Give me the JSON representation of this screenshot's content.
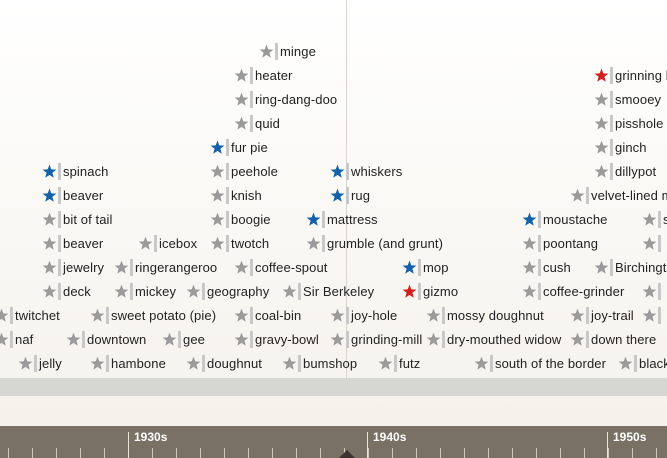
{
  "colors": {
    "grey_star": "#9a9a9a",
    "blue_star": "#1560a8",
    "red_star": "#d01f1f",
    "axis_bg": "#7a7165"
  },
  "terms": [
    {
      "label": "minge",
      "star": "grey"
    },
    {
      "label": "heater",
      "star": "grey"
    },
    {
      "label": "ring-dang-doo",
      "star": "grey"
    },
    {
      "label": "quid",
      "star": "grey"
    },
    {
      "label": "fur pie",
      "star": "blue"
    },
    {
      "label": "peehole",
      "star": "grey"
    },
    {
      "label": "knish",
      "star": "grey"
    },
    {
      "label": "boogie",
      "star": "grey"
    },
    {
      "label": "twotch",
      "star": "grey"
    },
    {
      "label": "coffee-spout",
      "star": "grey"
    },
    {
      "label": "geography",
      "star": "grey"
    },
    {
      "label": "coal-bin",
      "star": "grey"
    },
    {
      "label": "gravy-bowl",
      "star": "grey"
    },
    {
      "label": "doughnut",
      "star": "grey"
    },
    {
      "label": "spinach",
      "star": "blue"
    },
    {
      "label": "beaver",
      "star": "blue"
    },
    {
      "label": "bit of tail",
      "star": "grey"
    },
    {
      "label": "beaver",
      "star": "grey"
    },
    {
      "label": "jewelry",
      "star": "grey"
    },
    {
      "label": "deck",
      "star": "grey"
    },
    {
      "label": "icebox",
      "star": "grey"
    },
    {
      "label": "ringerangeroo",
      "star": "grey"
    },
    {
      "label": "mickey",
      "star": "grey"
    },
    {
      "label": "twitchet",
      "star": "grey"
    },
    {
      "label": "naf",
      "star": "grey"
    },
    {
      "label": "jelly",
      "star": "grey"
    },
    {
      "label": "sweet potato (pie)",
      "star": "grey"
    },
    {
      "label": "downtown",
      "star": "grey"
    },
    {
      "label": "hambone",
      "star": "grey"
    },
    {
      "label": "gee",
      "star": "grey"
    },
    {
      "label": "whiskers",
      "star": "blue"
    },
    {
      "label": "rug",
      "star": "blue"
    },
    {
      "label": "mattress",
      "star": "blue"
    },
    {
      "label": "grumble (and grunt)",
      "star": "grey"
    },
    {
      "label": "Sir Berkeley",
      "star": "grey"
    },
    {
      "label": "joy-hole",
      "star": "grey"
    },
    {
      "label": "bumshop",
      "star": "grey"
    },
    {
      "label": "grinding-mill",
      "star": "grey"
    },
    {
      "label": "futz",
      "star": "grey"
    },
    {
      "label": "mop",
      "star": "blue"
    },
    {
      "label": "gizmo",
      "star": "red"
    },
    {
      "label": "mossy doughnut",
      "star": "grey"
    },
    {
      "label": "dry-mouthed widow",
      "star": "grey"
    },
    {
      "label": "south of the border",
      "star": "grey"
    },
    {
      "label": "grinning be",
      "star": "red"
    },
    {
      "label": "smooey",
      "star": "grey"
    },
    {
      "label": "pisshole",
      "star": "grey"
    },
    {
      "label": "ginch",
      "star": "grey"
    },
    {
      "label": "dillypot",
      "star": "grey"
    },
    {
      "label": "velvet-lined me",
      "star": "grey"
    },
    {
      "label": "moustache",
      "star": "blue"
    },
    {
      "label": "poontang",
      "star": "grey"
    },
    {
      "label": "cush",
      "star": "grey"
    },
    {
      "label": "coffee-grinder",
      "star": "grey"
    },
    {
      "label": "joy-trail",
      "star": "grey"
    },
    {
      "label": "down there",
      "star": "grey"
    },
    {
      "label": "Birchingto",
      "star": "grey"
    },
    {
      "label": "sl",
      "star": "grey"
    },
    {
      "label": "blackb",
      "star": "grey"
    },
    {
      "label": "",
      "star": "grey"
    },
    {
      "label": "",
      "star": "grey"
    },
    {
      "label": "",
      "star": "grey"
    }
  ],
  "axis": {
    "labels": [
      "1930s",
      "1940s",
      "1950s"
    ]
  }
}
